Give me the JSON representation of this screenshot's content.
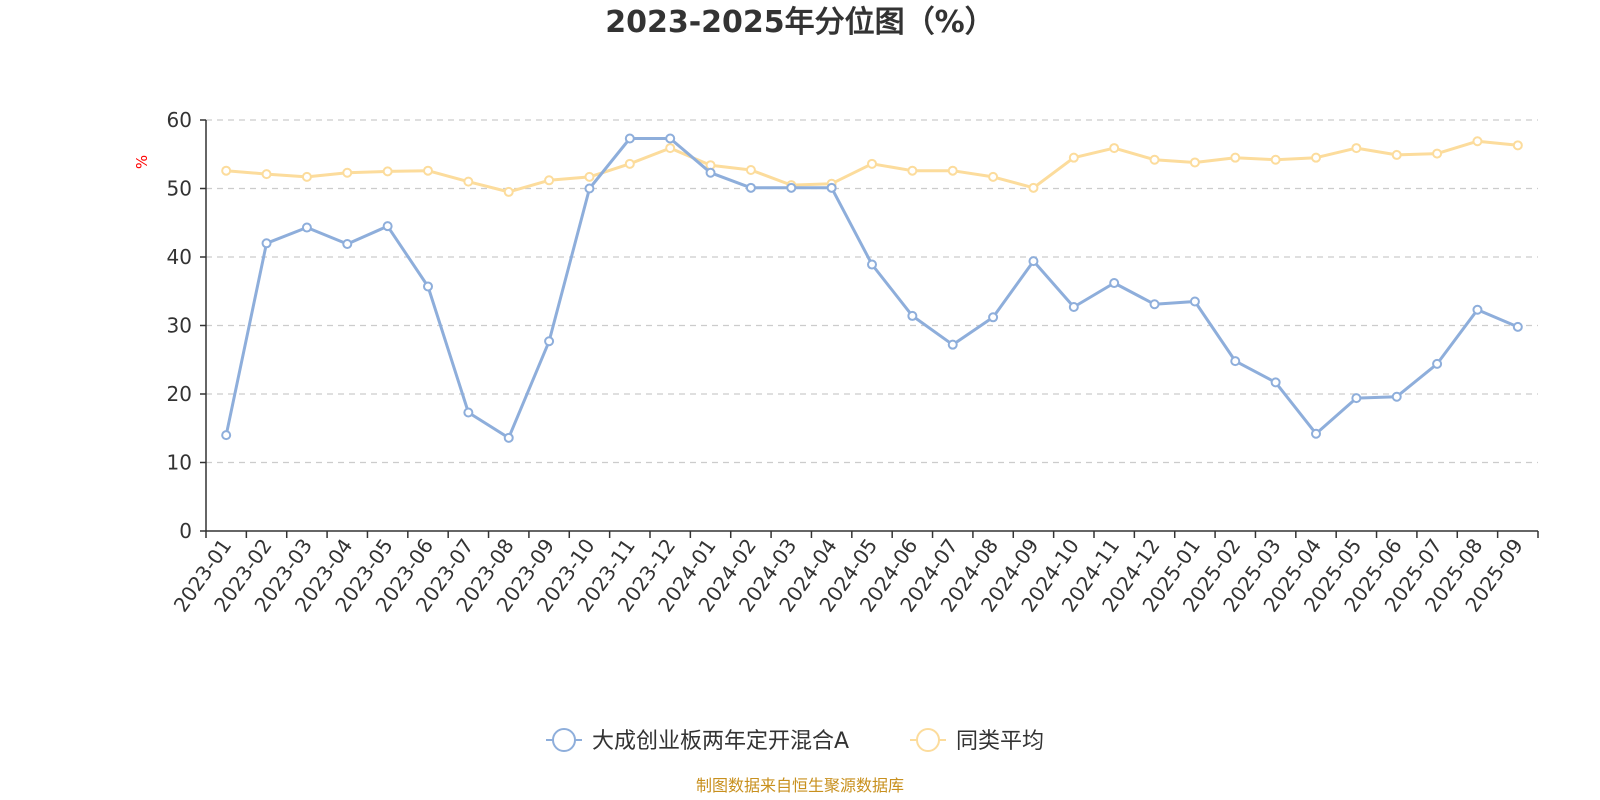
{
  "chart_data": {
    "type": "line",
    "title": "2023-2025年分位图（%）",
    "ylabel": "%",
    "ylim": [
      0,
      60
    ],
    "yticks": [
      0,
      10,
      20,
      30,
      40,
      50,
      60
    ],
    "grid": true,
    "legend_position": "bottom-center",
    "categories": [
      "2023-01",
      "2023-02",
      "2023-03",
      "2023-04",
      "2023-05",
      "2023-06",
      "2023-07",
      "2023-08",
      "2023-09",
      "2023-10",
      "2023-11",
      "2023-12",
      "2024-01",
      "2024-02",
      "2024-03",
      "2024-04",
      "2024-05",
      "2024-06",
      "2024-07",
      "2024-08",
      "2024-09",
      "2024-10",
      "2024-11",
      "2024-12",
      "2025-01",
      "2025-02",
      "2025-03",
      "2025-04",
      "2025-05",
      "2025-06",
      "2025-07",
      "2025-08",
      "2025-09"
    ],
    "series": [
      {
        "name": "大成创业板两年定开混合A",
        "color": "#8eaedb",
        "values": [
          14.0,
          42.0,
          44.3,
          41.9,
          44.5,
          35.7,
          17.3,
          13.6,
          27.7,
          50.0,
          57.3,
          57.3,
          52.3,
          50.1,
          50.1,
          50.1,
          38.9,
          31.4,
          27.2,
          31.2,
          39.4,
          32.7,
          36.2,
          33.1,
          33.5,
          24.8,
          21.7,
          14.2,
          19.4,
          19.6,
          24.4,
          32.3,
          29.8
        ]
      },
      {
        "name": "同类平均",
        "color": "#fcdc9c",
        "values": [
          52.6,
          52.1,
          51.7,
          52.3,
          52.5,
          52.6,
          51.0,
          49.5,
          51.2,
          51.7,
          53.6,
          55.9,
          53.4,
          52.7,
          50.5,
          50.7,
          53.6,
          52.6,
          52.6,
          51.7,
          50.1,
          54.5,
          55.9,
          54.2,
          53.8,
          54.5,
          54.2,
          54.5,
          55.9,
          54.9,
          55.1,
          56.9,
          56.3
        ]
      }
    ]
  },
  "footer": {
    "source_text": "制图数据来自恒生聚源数据库",
    "source_color": "#c8901e"
  }
}
